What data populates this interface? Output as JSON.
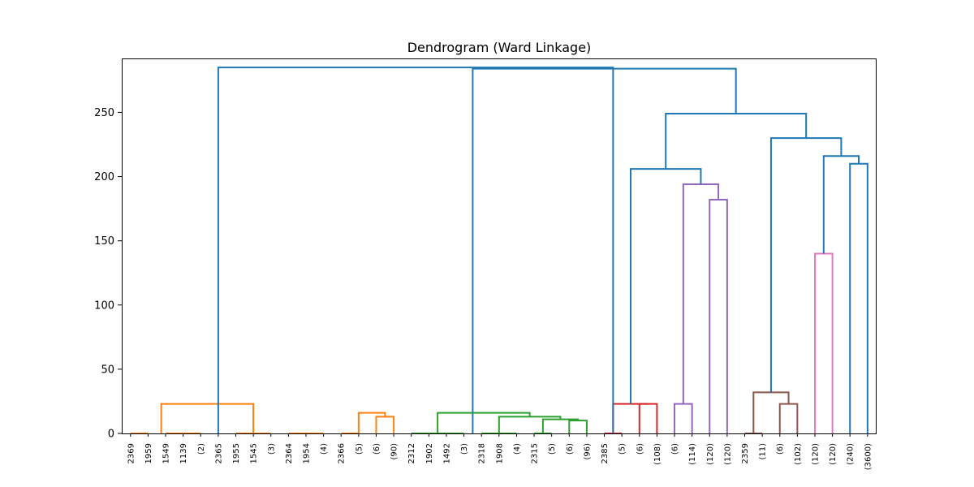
{
  "chart_data": {
    "type": "dendrogram",
    "title": "Dendrogram (Ward Linkage)",
    "xlabel": "",
    "ylabel": "",
    "ylim": [
      0,
      292
    ],
    "yticks": [
      0,
      50,
      100,
      150,
      200,
      250
    ],
    "grid": false,
    "leaf_labels": [
      "2369",
      "1959",
      "1549",
      "1139",
      "(2)",
      "2365",
      "1955",
      "1545",
      "(3)",
      "2364",
      "1954",
      "(4)",
      "2366",
      "(5)",
      "(6)",
      "(90)",
      "2312",
      "1902",
      "1492",
      "(3)",
      "2318",
      "1908",
      "(4)",
      "2315",
      "(5)",
      "(6)",
      "(96)",
      "2385",
      "(5)",
      "(6)",
      "(108)",
      "(6)",
      "(114)",
      "(120)",
      "(120)",
      "2359",
      "(11)",
      "(6)",
      "(102)",
      "(120)",
      "(120)",
      "(240)",
      "(3600)"
    ],
    "colors": {
      "above_threshold": "#1f77b4",
      "orange": "#ff7f0e",
      "green": "#2ca02c",
      "red": "#d62728",
      "purple": "#9467bd",
      "brown": "#8c564b",
      "pink": "#e377c2"
    },
    "links": [
      {
        "leaves": [
          0,
          1
        ],
        "height": 0,
        "merged_height": 0,
        "color": "orange"
      },
      {
        "leaves": [
          2,
          3
        ],
        "height": 0,
        "color": "orange"
      },
      {
        "leaves": [
          3,
          4
        ],
        "height": 0,
        "color": "orange"
      },
      {
        "leaves": [
          6,
          7
        ],
        "height": 0,
        "color": "orange"
      },
      {
        "leaves": [
          7,
          8
        ],
        "height": 0,
        "color": "orange"
      },
      {
        "leaves": [
          9,
          10
        ],
        "height": 0,
        "color": "orange"
      },
      {
        "leaves": [
          10,
          11
        ],
        "height": 0,
        "color": "orange"
      },
      {
        "leaves": [
          12,
          13
        ],
        "height": 0,
        "color": "orange"
      },
      {
        "leaves": [
          16,
          17
        ],
        "height": 0,
        "color": "green"
      },
      {
        "leaves": [
          17,
          18
        ],
        "height": 0,
        "color": "green"
      },
      {
        "leaves": [
          18,
          19
        ],
        "height": 0,
        "color": "green"
      },
      {
        "leaves": [
          20,
          21
        ],
        "height": 0,
        "color": "green"
      },
      {
        "leaves": [
          21,
          22
        ],
        "height": 0,
        "color": "green"
      },
      {
        "leaves": [
          23,
          24
        ],
        "height": 0,
        "color": "green"
      },
      {
        "leaves": [
          27,
          28
        ],
        "height": 0,
        "color": "red"
      },
      {
        "leaves": [
          35,
          36
        ],
        "height": 0,
        "color": "brown"
      }
    ],
    "merges": [
      {
        "left": [
          14
        ],
        "right": [
          15
        ],
        "height": 13,
        "color": "orange"
      },
      {
        "left": [
          13
        ],
        "right": [
          14.5
        ],
        "height": 16,
        "color": "orange"
      },
      {
        "left": [
          1.75
        ],
        "right": [
          7
        ],
        "height": 23,
        "color": "orange"
      },
      {
        "left": [
          25
        ],
        "right": [
          26
        ],
        "height": 10,
        "color": "green"
      },
      {
        "left": [
          23.5
        ],
        "right": [
          25.5
        ],
        "height": 11,
        "color": "green"
      },
      {
        "left": [
          21
        ],
        "right": [
          24.5
        ],
        "height": 13,
        "color": "green"
      },
      {
        "left": [
          17.5
        ],
        "right": [
          22.75
        ],
        "height": 16,
        "color": "green"
      },
      {
        "left": [
          29
        ],
        "right": [
          30
        ],
        "height": 23,
        "color": "red"
      },
      {
        "left": [
          27.5
        ],
        "right": [
          29.5
        ],
        "height": 23,
        "color": "red"
      },
      {
        "left": [
          31
        ],
        "right": [
          32
        ],
        "height": 23,
        "color": "purple"
      },
      {
        "left": [
          33
        ],
        "right": [
          34
        ],
        "height": 182,
        "color": "purple"
      },
      {
        "left": [
          31.5
        ],
        "right": [
          33.5
        ],
        "height": 194,
        "color": "purple"
      },
      {
        "left": [
          37
        ],
        "right": [
          38
        ],
        "height": 23,
        "color": "brown"
      },
      {
        "left": [
          35.5
        ],
        "right": [
          37.5
        ],
        "height": 32,
        "color": "brown"
      },
      {
        "left": [
          39
        ],
        "right": [
          40
        ],
        "height": 140,
        "color": "pink"
      },
      {
        "left": [
          41
        ],
        "right": [
          42
        ],
        "height": 210,
        "color": "above_threshold"
      },
      {
        "left": [
          39.5
        ],
        "right": [
          41.5
        ],
        "height": 216,
        "color": "above_threshold"
      },
      {
        "left": [
          36.5
        ],
        "right": [
          40.5
        ],
        "height": 230,
        "color": "above_threshold"
      },
      {
        "left": [
          28.5
        ],
        "right": [
          32.5
        ],
        "height": 206,
        "color": "above_threshold"
      },
      {
        "left": [
          30.5
        ],
        "right": [
          38.5
        ],
        "height": 249,
        "color": "above_threshold"
      },
      {
        "left": [
          19.5
        ],
        "right": [
          34.5
        ],
        "height": 284,
        "color": "above_threshold"
      },
      {
        "left": [
          5
        ],
        "right": [
          27.5
        ],
        "height": 285,
        "color": "above_threshold"
      }
    ]
  }
}
